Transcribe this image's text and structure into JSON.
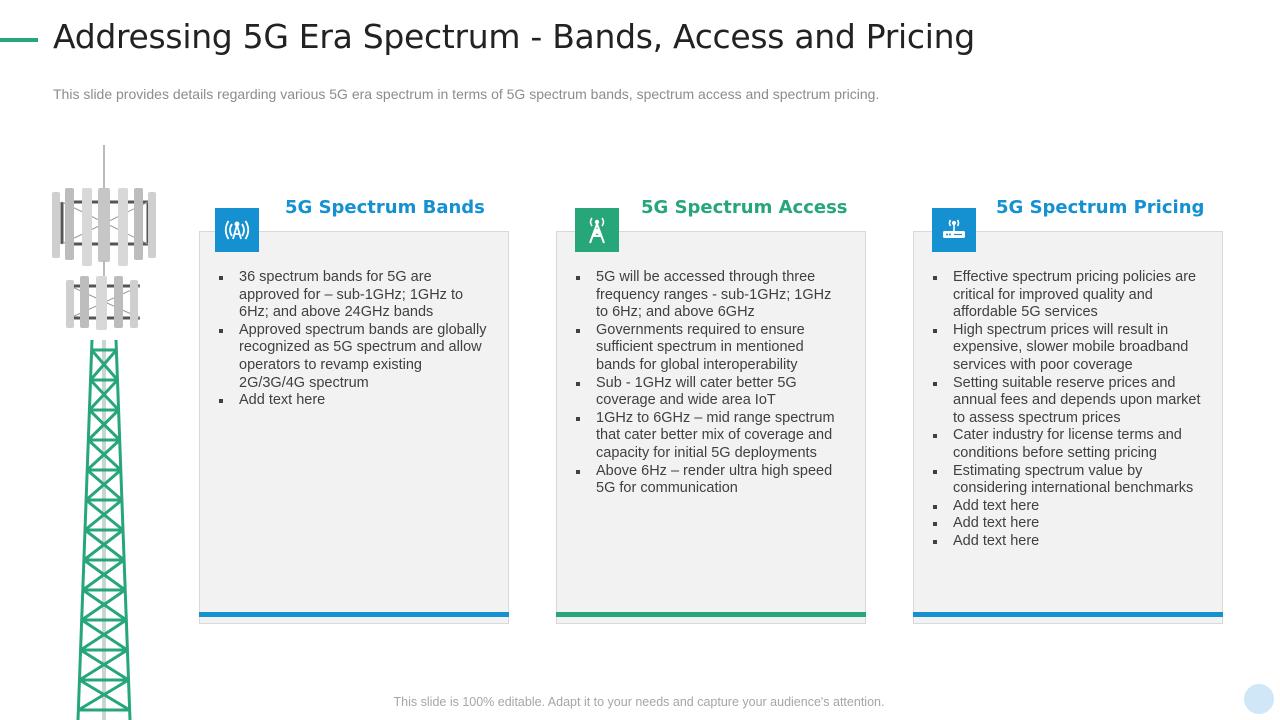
{
  "header": {
    "title": "Addressing 5G Era Spectrum - Bands,  Access and Pricing",
    "subtitle": "This slide provides details regarding various 5G era spectrum in terms of 5G spectrum bands, spectrum access and spectrum pricing."
  },
  "colors": {
    "blue": "#1590d1",
    "green": "#27a67a"
  },
  "cards": [
    {
      "heading": "5G Spectrum Bands",
      "icon": "antenna-signal-icon",
      "color": "#1590d1",
      "bullets": [
        "36 spectrum bands for 5G are approved for – sub-1GHz; 1GHz to 6Hz; and above 24GHz bands",
        "Approved spectrum bands are globally recognized as 5G spectrum and allow operators to revamp existing 2G/3G/4G spectrum",
        "Add text here"
      ]
    },
    {
      "heading": "5G Spectrum Access",
      "icon": "cell-tower-icon",
      "color": "#27a67a",
      "bullets": [
        "5G will be accessed through three frequency ranges - sub-1GHz; 1GHz to 6Hz; and above 6GHz",
        "Governments required to ensure sufficient spectrum in mentioned bands for global interoperability",
        "Sub - 1GHz will cater better 5G coverage and wide area IoT",
        "1GHz to 6GHz – mid range spectrum that cater better mix of coverage and capacity for initial 5G deployments",
        "Above 6Hz – render ultra high speed 5G  for communication"
      ]
    },
    {
      "heading": "5G Spectrum Pricing",
      "icon": "wifi-router-icon",
      "color": "#1590d1",
      "bullets": [
        "Effective spectrum pricing policies are critical for improved quality and affordable 5G services",
        "High spectrum prices will result in expensive, slower mobile broadband services with poor coverage",
        "Setting suitable reserve prices and annual fees and depends upon market to assess spectrum prices",
        "Cater industry for license terms and conditions before setting pricing",
        "Estimating spectrum value by considering international benchmarks",
        "Add text here",
        "Add text here",
        "Add text here"
      ]
    }
  ],
  "footer": {
    "text": "This slide is 100% editable. Adapt it to your needs and capture your audience's attention."
  }
}
